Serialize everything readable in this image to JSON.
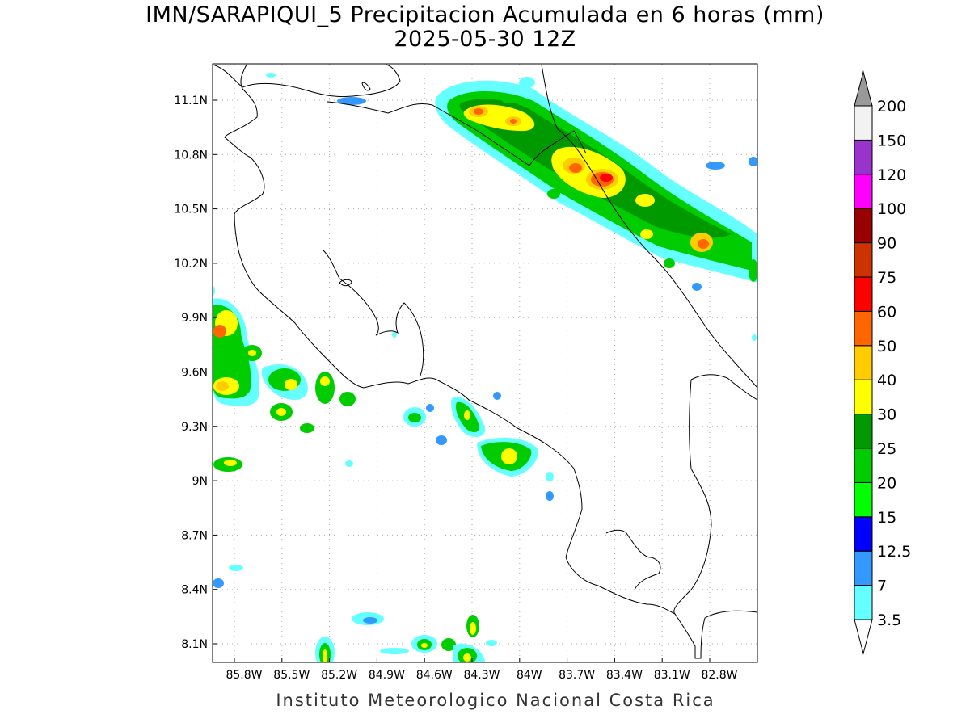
{
  "title_line1": "IMN/SARAPIQUI_5 Precipitacion Acumulada en 6 horas (mm)",
  "title_line2": "2025-05-30 12Z",
  "credit": "Instituto Meteorologico Nacional Costa Rica",
  "lat_ticks": [
    {
      "value": 11.1,
      "label": "11.1N"
    },
    {
      "value": 10.8,
      "label": "10.8N"
    },
    {
      "value": 10.5,
      "label": "10.5N"
    },
    {
      "value": 10.2,
      "label": "10.2N"
    },
    {
      "value": 9.9,
      "label": "9.9N"
    },
    {
      "value": 9.6,
      "label": "9.6N"
    },
    {
      "value": 9.3,
      "label": "9.3N"
    },
    {
      "value": 9.0,
      "label": "9N"
    },
    {
      "value": 8.7,
      "label": "8.7N"
    },
    {
      "value": 8.4,
      "label": "8.4N"
    },
    {
      "value": 8.1,
      "label": "8.1N"
    }
  ],
  "lon_ticks": [
    {
      "value": -85.8,
      "label": "85.8W"
    },
    {
      "value": -85.5,
      "label": "85.5W"
    },
    {
      "value": -85.2,
      "label": "85.2W"
    },
    {
      "value": -84.9,
      "label": "84.9W"
    },
    {
      "value": -84.6,
      "label": "84.6W"
    },
    {
      "value": -84.3,
      "label": "84.3W"
    },
    {
      "value": -84.0,
      "label": "84W"
    },
    {
      "value": -83.7,
      "label": "83.7W"
    },
    {
      "value": -83.4,
      "label": "83.4W"
    },
    {
      "value": -83.1,
      "label": "83.1W"
    },
    {
      "value": -82.8,
      "label": "82.8W"
    }
  ],
  "colorbar": {
    "labels": [
      "3.5",
      "7",
      "12.5",
      "15",
      "20",
      "25",
      "30",
      "40",
      "50",
      "60",
      "75",
      "90",
      "100",
      "120",
      "150",
      "200"
    ],
    "colors": [
      "#66ffff",
      "#3399ff",
      "#0000ff",
      "#00ff00",
      "#00cc00",
      "#009900",
      "#ffff00",
      "#ffcc00",
      "#ff6600",
      "#ff0000",
      "#cc3300",
      "#990000",
      "#ff00ff",
      "#9933cc",
      "#f2f2f2",
      "#999999"
    ]
  },
  "precip_cells": [
    {
      "lon": -84.3,
      "lat": 11.05,
      "mm": 45
    },
    {
      "lon": -84.05,
      "lat": 11.0,
      "mm": 40
    },
    {
      "lon": -83.7,
      "lat": 10.8,
      "mm": 50
    },
    {
      "lon": -83.55,
      "lat": 10.67,
      "mm": 75
    },
    {
      "lon": -83.42,
      "lat": 10.62,
      "mm": 60
    },
    {
      "lon": -83.25,
      "lat": 10.47,
      "mm": 40
    },
    {
      "lon": -82.85,
      "lat": 10.3,
      "mm": 60
    },
    {
      "lon": -82.6,
      "lat": 10.2,
      "mm": 25
    },
    {
      "lon": -85.95,
      "lat": 9.85,
      "mm": 60
    },
    {
      "lon": -85.95,
      "lat": 9.52,
      "mm": 45
    },
    {
      "lon": -85.7,
      "lat": 9.7,
      "mm": 40
    },
    {
      "lon": -85.45,
      "lat": 9.57,
      "mm": 45
    },
    {
      "lon": -85.2,
      "lat": 9.55,
      "mm": 40
    },
    {
      "lon": -85.5,
      "lat": 9.38,
      "mm": 35
    },
    {
      "lon": -84.55,
      "lat": 9.35,
      "mm": 30
    },
    {
      "lon": -84.35,
      "lat": 9.37,
      "mm": 35
    },
    {
      "lon": -84.1,
      "lat": 9.13,
      "mm": 40
    },
    {
      "lon": -85.9,
      "lat": 9.1,
      "mm": 30
    },
    {
      "lon": -85.1,
      "lat": 8.05,
      "mm": 40
    },
    {
      "lon": -84.55,
      "lat": 8.1,
      "mm": 35
    },
    {
      "lon": -84.3,
      "lat": 8.05,
      "mm": 40
    }
  ]
}
